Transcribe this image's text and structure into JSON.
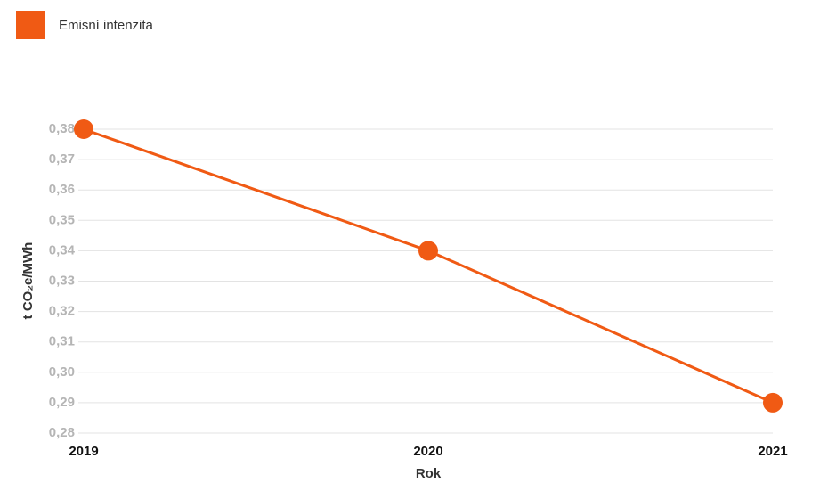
{
  "chart_data": {
    "type": "line",
    "legend_position": "top-left",
    "x_label": "Rok",
    "y_label": "t CO₂e/MWh",
    "categories": [
      "2019",
      "2020",
      "2021"
    ],
    "series": [
      {
        "name": "Emisní intenzita",
        "color": "#f05a14",
        "values": [
          0.38,
          0.34,
          0.29
        ]
      }
    ],
    "ylim": [
      0.28,
      0.38
    ],
    "yticks": [
      {
        "value": 0.28,
        "label": "0,28"
      },
      {
        "value": 0.29,
        "label": "0,29"
      },
      {
        "value": 0.3,
        "label": "0,30"
      },
      {
        "value": 0.31,
        "label": "0,31"
      },
      {
        "value": 0.32,
        "label": "0,32"
      },
      {
        "value": 0.33,
        "label": "0,33"
      },
      {
        "value": 0.34,
        "label": "0,34"
      },
      {
        "value": 0.35,
        "label": "0,35"
      },
      {
        "value": 0.36,
        "label": "0,36"
      },
      {
        "value": 0.37,
        "label": "0,37"
      },
      {
        "value": 0.38,
        "label": "0,38"
      }
    ],
    "grid": true
  }
}
